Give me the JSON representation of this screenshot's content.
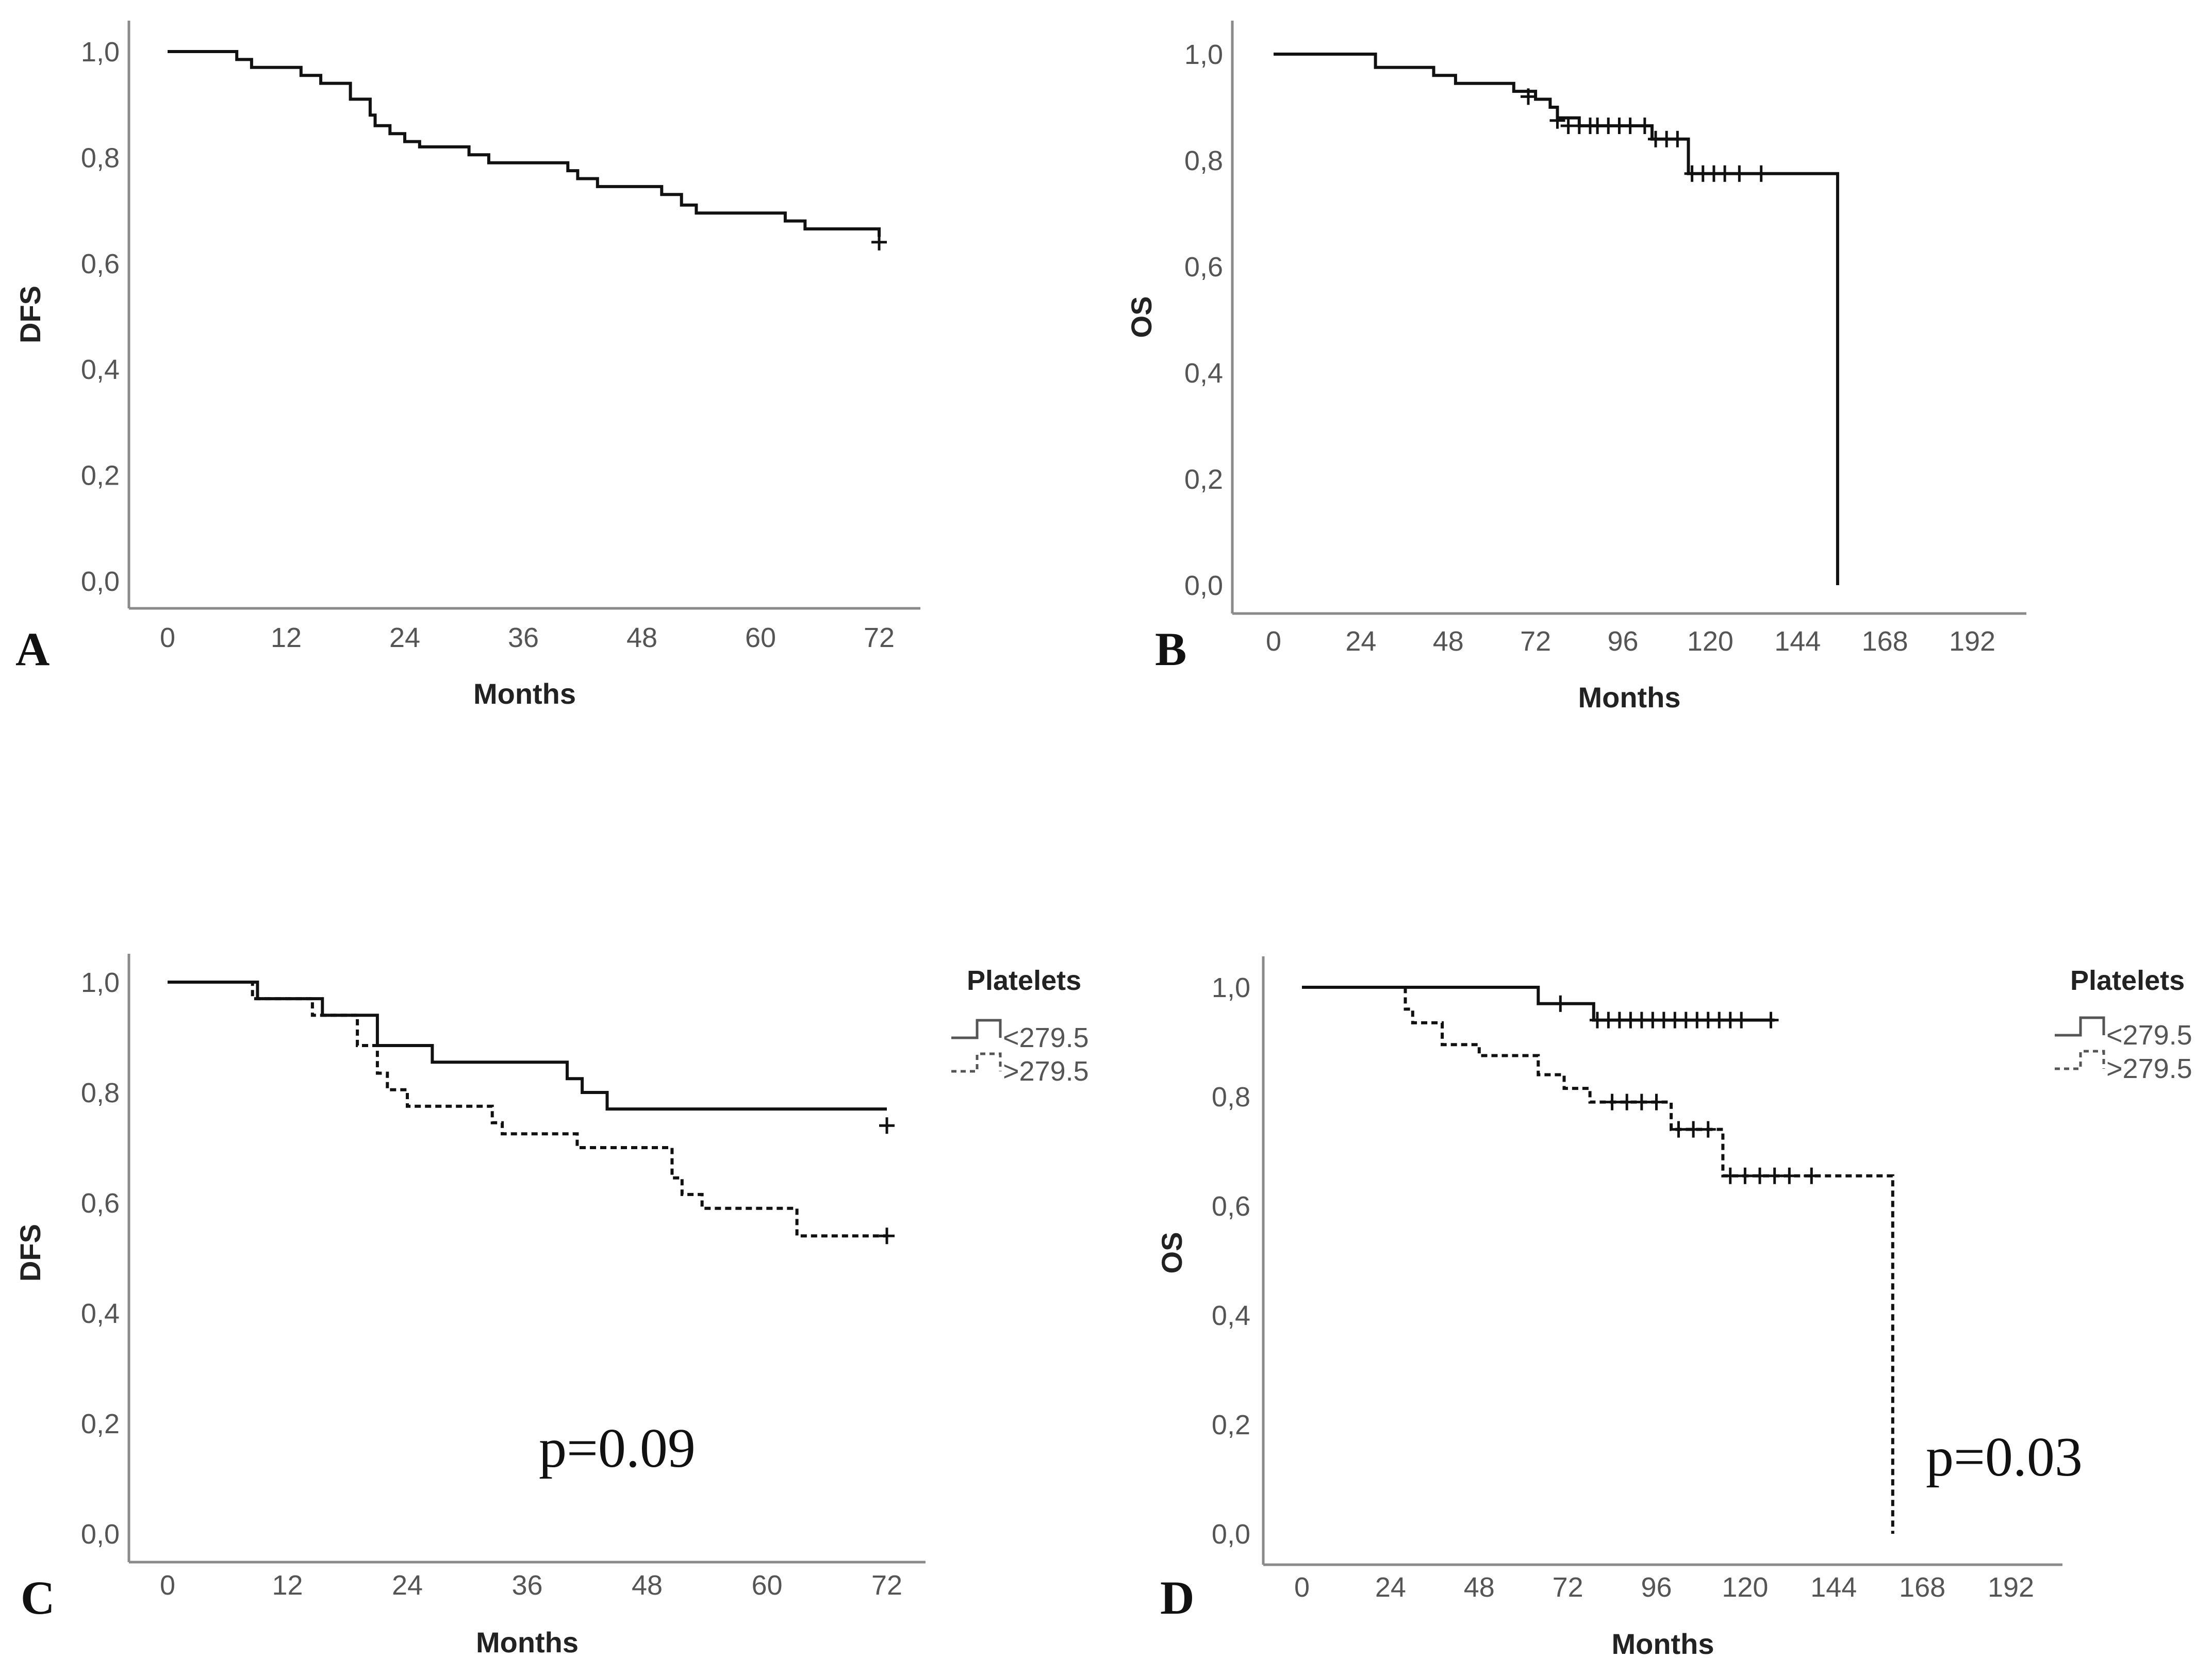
{
  "chart_data": [
    {
      "panel": "A",
      "type": "line",
      "step": true,
      "xlabel": "Months",
      "ylabel": "DFS",
      "xticks": [
        0,
        12,
        24,
        36,
        48,
        60,
        72
      ],
      "xtick_labels": [
        "0",
        "12",
        "24",
        "36",
        "48",
        "60",
        "72"
      ],
      "yticks": [
        0.0,
        0.2,
        0.4,
        0.6,
        0.8,
        1.0
      ],
      "ytick_labels": [
        "0,0",
        "0,2",
        "0,4",
        "0,6",
        "0,8",
        "1,0"
      ],
      "xlim": [
        -4,
        76
      ],
      "ylim": [
        -0.05,
        1.05
      ],
      "series": [
        {
          "name": "DFS",
          "style": "solid",
          "x": [
            0,
            7,
            8.5,
            13.5,
            15.5,
            18.5,
            20.5,
            21,
            22.5,
            24,
            25.5,
            30.5,
            32.5,
            40.5,
            41.5,
            43.5,
            50,
            52,
            53.5,
            62.5,
            64.5,
            72
          ],
          "y": [
            1.0,
            0.985,
            0.97,
            0.955,
            0.94,
            0.91,
            0.88,
            0.86,
            0.845,
            0.83,
            0.82,
            0.805,
            0.79,
            0.775,
            0.76,
            0.745,
            0.73,
            0.71,
            0.695,
            0.68,
            0.665,
            0.65
          ],
          "censored": [
            [
              72,
              0.64
            ]
          ]
        }
      ]
    },
    {
      "panel": "B",
      "type": "line",
      "step": true,
      "xlabel": "Months",
      "ylabel": "OS",
      "xticks": [
        0,
        24,
        48,
        72,
        96,
        120,
        144,
        168,
        192
      ],
      "xtick_labels": [
        "0",
        "24",
        "48",
        "72",
        "96",
        "120",
        "144",
        "168",
        "192"
      ],
      "yticks": [
        0.0,
        0.2,
        0.4,
        0.6,
        0.8,
        1.0
      ],
      "ytick_labels": [
        "0,0",
        "0,2",
        "0,4",
        "0,6",
        "0,8",
        "1,0"
      ],
      "xlim": [
        -12,
        212
      ],
      "ylim": [
        -0.05,
        1.05
      ],
      "series": [
        {
          "name": "OS",
          "style": "solid",
          "x": [
            0,
            28,
            44,
            50,
            66,
            72,
            76,
            78,
            84,
            104,
            114,
            155,
            155
          ],
          "y": [
            1.0,
            0.975,
            0.96,
            0.945,
            0.93,
            0.915,
            0.9,
            0.88,
            0.865,
            0.84,
            0.775,
            0.775,
            0.0
          ],
          "censored": [
            [
              70,
              0.92
            ],
            [
              78,
              0.875
            ],
            [
              81,
              0.865
            ],
            [
              84,
              0.865
            ],
            [
              87,
              0.865
            ],
            [
              89,
              0.865
            ],
            [
              92,
              0.865
            ],
            [
              95,
              0.865
            ],
            [
              98,
              0.865
            ],
            [
              102,
              0.865
            ],
            [
              105,
              0.84
            ],
            [
              108,
              0.84
            ],
            [
              111,
              0.84
            ],
            [
              115,
              0.775
            ],
            [
              118,
              0.775
            ],
            [
              121,
              0.775
            ],
            [
              124,
              0.775
            ],
            [
              128,
              0.775
            ],
            [
              134,
              0.775
            ]
          ]
        }
      ]
    },
    {
      "panel": "C",
      "type": "line",
      "step": true,
      "xlabel": "Months",
      "ylabel": "DFS",
      "xticks": [
        0,
        12,
        24,
        36,
        48,
        60,
        72
      ],
      "xtick_labels": [
        "0",
        "12",
        "24",
        "36",
        "48",
        "60",
        "72"
      ],
      "yticks": [
        0.0,
        0.2,
        0.4,
        0.6,
        0.8,
        1.0
      ],
      "ytick_labels": [
        "0,0",
        "0,2",
        "0,4",
        "0,6",
        "0,8",
        "1,0"
      ],
      "xlim": [
        -4,
        76
      ],
      "ylim": [
        -0.05,
        1.05
      ],
      "legend_title": "Platelets",
      "annotation": "p=0.09",
      "series": [
        {
          "name": "<279.5",
          "style": "solid",
          "x": [
            0,
            9,
            15.5,
            21,
            26.5,
            40,
            41.5,
            44,
            72
          ],
          "y": [
            1.0,
            0.97,
            0.94,
            0.885,
            0.855,
            0.825,
            0.8,
            0.77,
            0.77
          ],
          "censored": [
            [
              72,
              0.74
            ]
          ]
        },
        {
          "name": ">279.5",
          "style": "dashed",
          "x": [
            0,
            8.5,
            14.5,
            19,
            21,
            22,
            24,
            32.5,
            33.5,
            41,
            50.5,
            51.5,
            53.5,
            63,
            72
          ],
          "y": [
            1.0,
            0.97,
            0.94,
            0.885,
            0.835,
            0.805,
            0.775,
            0.745,
            0.725,
            0.7,
            0.645,
            0.615,
            0.59,
            0.54,
            0.54
          ],
          "censored": [
            [
              72,
              0.54
            ]
          ]
        }
      ]
    },
    {
      "panel": "D",
      "type": "line",
      "step": true,
      "xlabel": "Months",
      "ylabel": "OS",
      "xticks": [
        0,
        24,
        48,
        72,
        96,
        120,
        144,
        168,
        192
      ],
      "xtick_labels": [
        "0",
        "24",
        "48",
        "72",
        "96",
        "120",
        "144",
        "168",
        "192"
      ],
      "yticks": [
        0.0,
        0.2,
        0.4,
        0.6,
        0.8,
        1.0
      ],
      "ytick_labels": [
        "0,0",
        "0,2",
        "0,4",
        "0,6",
        "0,8",
        "1,0"
      ],
      "xlim": [
        -12,
        212
      ],
      "ylim": [
        -0.05,
        1.05
      ],
      "legend_title": "Platelets",
      "annotation": "p=0.03",
      "series": [
        {
          "name": "<279.5",
          "style": "solid",
          "x": [
            0,
            64,
            79,
            128
          ],
          "y": [
            1.0,
            0.97,
            0.94,
            0.94
          ],
          "censored": [
            [
              70,
              0.97
            ],
            [
              80,
              0.94
            ],
            [
              83,
              0.94
            ],
            [
              86,
              0.94
            ],
            [
              89,
              0.94
            ],
            [
              92,
              0.94
            ],
            [
              95,
              0.94
            ],
            [
              98,
              0.94
            ],
            [
              101,
              0.94
            ],
            [
              104,
              0.94
            ],
            [
              107,
              0.94
            ],
            [
              110,
              0.94
            ],
            [
              113,
              0.94
            ],
            [
              116,
              0.94
            ],
            [
              119,
              0.94
            ],
            [
              127,
              0.94
            ]
          ]
        },
        {
          "name": ">279.5",
          "style": "dashed",
          "x": [
            0,
            28,
            30,
            38,
            48,
            64,
            71,
            78,
            100,
            114,
            160,
            160
          ],
          "y": [
            1.0,
            0.96,
            0.935,
            0.895,
            0.875,
            0.84,
            0.815,
            0.79,
            0.74,
            0.655,
            0.655,
            0.0
          ],
          "censored": [
            [
              84,
              0.79
            ],
            [
              88,
              0.79
            ],
            [
              92,
              0.79
            ],
            [
              96,
              0.79
            ],
            [
              102,
              0.74
            ],
            [
              106,
              0.74
            ],
            [
              110,
              0.74
            ],
            [
              116,
              0.655
            ],
            [
              120,
              0.655
            ],
            [
              124,
              0.655
            ],
            [
              128,
              0.655
            ],
            [
              132,
              0.655
            ],
            [
              138,
              0.655
            ]
          ]
        }
      ]
    }
  ]
}
